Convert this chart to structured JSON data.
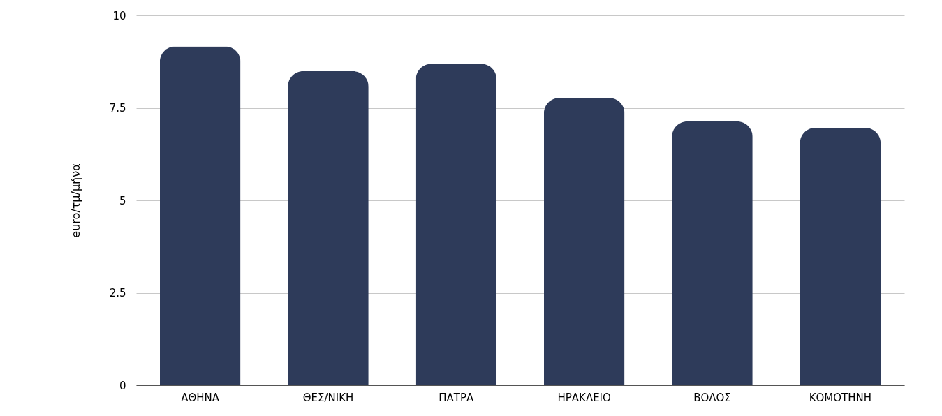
{
  "chart_data": {
    "type": "bar",
    "ylabel": "euro/τμ/μήνα",
    "categories": [
      "ΑΘΗΝΑ",
      "ΘΕΣ/ΝΙΚΗ",
      "ΠΑΤΡΑ",
      "ΗΡΑΚΛΕΙΟ",
      "ΒΟΛΟΣ",
      "ΚΟΜΟΤΗΝΗ"
    ],
    "values": [
      9.16,
      8.49,
      8.69,
      7.77,
      7.13,
      6.96
    ],
    "color": "#2e3b5a",
    "ylim": [
      0,
      10
    ],
    "yticks": [
      0,
      2.5,
      5,
      7.5,
      10
    ],
    "grid": "y"
  }
}
